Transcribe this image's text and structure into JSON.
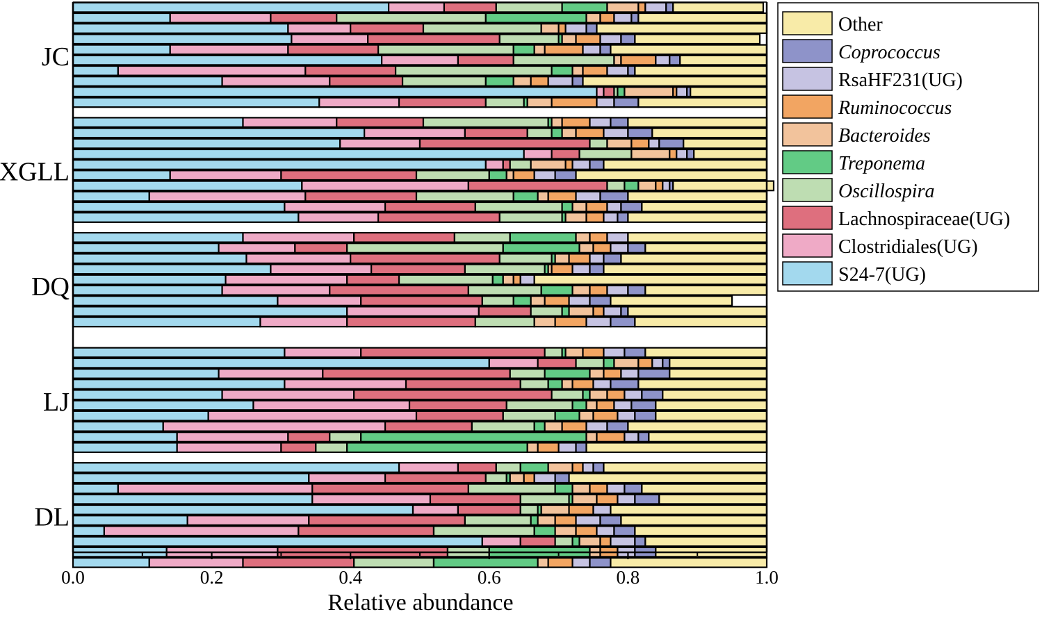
{
  "chart_data": {
    "type": "stacked-horizontal-bar",
    "title": "",
    "xlabel": "Relative abundance",
    "ylabel": "",
    "xlim": [
      0,
      1
    ],
    "xticks": [
      "0.0",
      "0.2",
      "0.4",
      "0.6",
      "0.8",
      "1.0"
    ],
    "series": [
      {
        "name": "S24-7(UG)",
        "italic": false,
        "color": "#A3D9EE"
      },
      {
        "name": "Clostridiales(UG)",
        "italic": false,
        "color": "#EFAAC6"
      },
      {
        "name": "Lachnospiraceae(UG)",
        "italic": false,
        "color": "#DE6F7E"
      },
      {
        "name": "Oscillospira",
        "italic": true,
        "color": "#BEDDB2"
      },
      {
        "name": "Treponema",
        "italic": true,
        "color": "#62CB85"
      },
      {
        "name": "Bacteroides",
        "italic": true,
        "color": "#F2C39C"
      },
      {
        "name": "Ruminococcus",
        "italic": true,
        "color": "#F2A562"
      },
      {
        "name": "RsaHF231(UG)",
        "italic": false,
        "color": "#C6C3E2"
      },
      {
        "name": "Coprococcus",
        "italic": true,
        "color": "#8E93C9"
      },
      {
        "name": "Other",
        "italic": false,
        "color": "#F8EBA8"
      }
    ],
    "groups": [
      {
        "name": "JC",
        "samples": [
          [
            0.455,
            0.08,
            0.075,
            0.095,
            0.065,
            0.045,
            0.01,
            0.03,
            0.01,
            0.13
          ],
          [
            0.14,
            0.145,
            0.095,
            0.215,
            0.145,
            0.02,
            0.02,
            0.025,
            0.01,
            0.185
          ],
          [
            0.31,
            0.09,
            0.105,
            0.17,
            0.0,
            0.025,
            0.01,
            0.03,
            0.015,
            0.245
          ],
          [
            0.315,
            0.11,
            0.19,
            0.085,
            0.005,
            0.02,
            0.035,
            0.03,
            0.02,
            0.18
          ],
          [
            0.14,
            0.17,
            0.13,
            0.195,
            0.03,
            0.015,
            0.055,
            0.025,
            0.015,
            0.225
          ],
          [
            0.445,
            0.11,
            0.08,
            0.145,
            0.0,
            0.01,
            0.05,
            0.02,
            0.015,
            0.125
          ],
          [
            0.065,
            0.27,
            0.13,
            0.225,
            0.03,
            0.015,
            0.035,
            0.03,
            0.01,
            0.19
          ],
          [
            0.215,
            0.155,
            0.105,
            0.12,
            0.04,
            0.025,
            0.025,
            0.035,
            0.015,
            0.265
          ],
          [
            0.755,
            0.01,
            0.015,
            0.005,
            0.01,
            0.07,
            0.005,
            0.015,
            0.005,
            0.11
          ],
          [
            0.355,
            0.115,
            0.125,
            0.055,
            0.005,
            0.035,
            0.065,
            0.025,
            0.035,
            0.185
          ]
        ]
      },
      {
        "name": "XGLL",
        "samples": [
          [
            0.245,
            0.135,
            0.125,
            0.18,
            0.005,
            0.015,
            0.04,
            0.03,
            0.025,
            0.2
          ],
          [
            0.42,
            0.145,
            0.09,
            0.035,
            0.015,
            0.02,
            0.04,
            0.035,
            0.035,
            0.165
          ],
          [
            0.385,
            0.115,
            0.245,
            0.025,
            0.0,
            0.035,
            0.025,
            0.015,
            0.035,
            0.12
          ],
          [
            0.65,
            0.04,
            0.04,
            0.075,
            0.0,
            0.055,
            0.01,
            0.015,
            0.01,
            0.105
          ],
          [
            0.595,
            0.025,
            0.01,
            0.03,
            0.0,
            0.05,
            0.01,
            0.025,
            0.02,
            0.235
          ],
          [
            0.14,
            0.16,
            0.195,
            0.105,
            0.025,
            0.01,
            0.03,
            0.03,
            0.03,
            0.275
          ],
          [
            0.33,
            0.24,
            0.2,
            0.025,
            0.02,
            0.025,
            0.01,
            0.01,
            0.005,
            0.145
          ],
          [
            0.11,
            0.225,
            0.16,
            0.14,
            0.035,
            0.015,
            0.04,
            0.035,
            0.04,
            0.2
          ],
          [
            0.305,
            0.145,
            0.13,
            0.125,
            0.015,
            0.02,
            0.03,
            0.02,
            0.03,
            0.18
          ],
          [
            0.325,
            0.115,
            0.175,
            0.09,
            0.005,
            0.03,
            0.025,
            0.02,
            0.015,
            0.2
          ]
        ]
      },
      {
        "name": "DQ",
        "samples": [
          [
            0.245,
            0.16,
            0.145,
            0.08,
            0.095,
            0.02,
            0.025,
            0.03,
            0.0,
            0.2
          ],
          [
            0.21,
            0.11,
            0.075,
            0.225,
            0.11,
            0.02,
            0.025,
            0.025,
            0.025,
            0.175
          ],
          [
            0.25,
            0.15,
            0.215,
            0.075,
            0.005,
            0.02,
            0.03,
            0.02,
            0.025,
            0.21
          ],
          [
            0.285,
            0.145,
            0.135,
            0.115,
            0.005,
            0.005,
            0.03,
            0.025,
            0.02,
            0.235
          ],
          [
            0.22,
            0.175,
            0.075,
            0.135,
            0.015,
            0.015,
            0.01,
            0.02,
            0.0,
            0.335
          ],
          [
            0.215,
            0.155,
            0.2,
            0.105,
            0.045,
            0.025,
            0.025,
            0.03,
            0.025,
            0.175
          ],
          [
            0.295,
            0.12,
            0.175,
            0.045,
            0.025,
            0.02,
            0.035,
            0.03,
            0.03,
            0.175
          ],
          [
            0.395,
            0.19,
            0.075,
            0.045,
            0.01,
            0.035,
            0.015,
            0.025,
            0.01,
            0.2
          ],
          [
            0.27,
            0.125,
            0.185,
            0.085,
            0.0,
            0.03,
            0.045,
            0.035,
            0.035,
            0.19
          ],
          [
            0.0,
            0.0,
            0.0,
            0.0,
            0.0,
            0.0,
            0.0,
            0.0,
            0.0,
            0.0
          ]
        ]
      },
      {
        "name": "LJ",
        "samples": [
          [
            0.305,
            0.11,
            0.265,
            0.025,
            0.005,
            0.025,
            0.03,
            0.03,
            0.03,
            0.175
          ],
          [
            0.6,
            0.07,
            0.055,
            0.04,
            0.015,
            0.035,
            0.02,
            0.015,
            0.01,
            0.14
          ],
          [
            0.21,
            0.15,
            0.27,
            0.05,
            0.065,
            0.02,
            0.025,
            0.025,
            0.045,
            0.14
          ],
          [
            0.305,
            0.175,
            0.165,
            0.04,
            0.02,
            0.015,
            0.03,
            0.025,
            0.04,
            0.185
          ],
          [
            0.215,
            0.19,
            0.285,
            0.045,
            0.01,
            0.025,
            0.025,
            0.025,
            0.03,
            0.15
          ],
          [
            0.26,
            0.225,
            0.14,
            0.095,
            0.02,
            0.015,
            0.025,
            0.025,
            0.035,
            0.16
          ],
          [
            0.195,
            0.3,
            0.125,
            0.075,
            0.035,
            0.02,
            0.035,
            0.025,
            0.03,
            0.16
          ],
          [
            0.13,
            0.32,
            0.125,
            0.09,
            0.015,
            0.025,
            0.035,
            0.03,
            0.03,
            0.2
          ],
          [
            0.15,
            0.16,
            0.06,
            0.045,
            0.325,
            0.015,
            0.04,
            0.02,
            0.015,
            0.17
          ],
          [
            0.15,
            0.15,
            0.05,
            0.045,
            0.26,
            0.015,
            0.03,
            0.025,
            0.015,
            0.26
          ]
        ]
      },
      {
        "name": "DL",
        "samples": [
          [
            0.47,
            0.085,
            0.055,
            0.035,
            0.04,
            0.035,
            0.015,
            0.015,
            0.015,
            0.235
          ],
          [
            0.34,
            0.11,
            0.145,
            0.03,
            0.005,
            0.02,
            0.015,
            0.03,
            0.02,
            0.285
          ],
          [
            0.065,
            0.28,
            0.225,
            0.125,
            0.025,
            0.025,
            0.025,
            0.025,
            0.025,
            0.18
          ],
          [
            0.345,
            0.17,
            0.13,
            0.07,
            0.005,
            0.035,
            0.03,
            0.025,
            0.035,
            0.155
          ],
          [
            0.49,
            0.065,
            0.09,
            0.025,
            0.005,
            0.04,
            0.035,
            0.025,
            0.0,
            0.225
          ],
          [
            0.165,
            0.175,
            0.225,
            0.095,
            0.01,
            0.025,
            0.03,
            0.035,
            0.03,
            0.21
          ],
          [
            0.045,
            0.28,
            0.195,
            0.145,
            0.03,
            0.03,
            0.03,
            0.025,
            0.03,
            0.19
          ],
          [
            0.59,
            0.055,
            0.05,
            0.025,
            0.01,
            0.03,
            0.015,
            0.035,
            0.015,
            0.175
          ],
          [
            0.135,
            0.16,
            0.245,
            0.06,
            0.145,
            0.015,
            0.025,
            0.025,
            0.03,
            0.16
          ],
          [
            0.11,
            0.135,
            0.16,
            0.115,
            0.15,
            0.015,
            0.035,
            0.025,
            0.03,
            0.225
          ]
        ]
      }
    ],
    "legend_position": "right"
  }
}
